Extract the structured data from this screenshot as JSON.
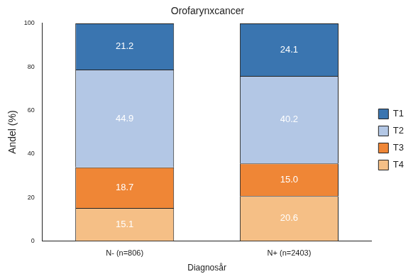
{
  "chart_data": {
    "type": "bar",
    "title": "Orofarynxcancer",
    "xlabel": "Diagnosår",
    "ylabel": "Andel (%)",
    "categories": [
      "N- (n=806)",
      "N+ (n=2403)"
    ],
    "series": [
      {
        "name": "T1",
        "color": "#3a75b0",
        "values": [
          21.2,
          24.1
        ],
        "value_labels": [
          "21.2",
          "24.1"
        ]
      },
      {
        "name": "T2",
        "color": "#b3c7e5",
        "values": [
          44.9,
          40.2
        ],
        "value_labels": [
          "44.9",
          "40.2"
        ]
      },
      {
        "name": "T3",
        "color": "#ef8636",
        "values": [
          18.7,
          15.0
        ],
        "value_labels": [
          "18.7",
          "15.0"
        ]
      },
      {
        "name": "T4",
        "color": "#f5bf86",
        "values": [
          15.1,
          20.6
        ],
        "value_labels": [
          "15.1",
          "20.6"
        ]
      }
    ],
    "ylim": [
      0,
      100
    ],
    "yticks": [
      0,
      20,
      40,
      60,
      80,
      100
    ],
    "stacked": true,
    "data_labels": true,
    "grid": false,
    "legend": "right"
  }
}
